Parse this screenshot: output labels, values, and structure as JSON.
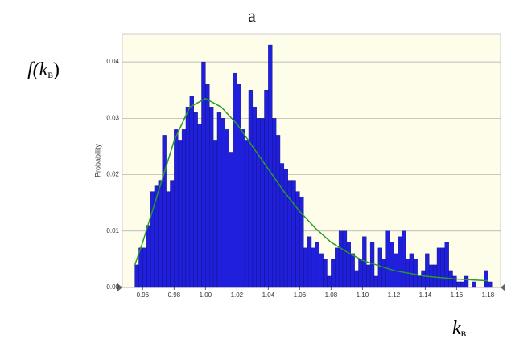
{
  "chart_data": {
    "type": "histogram",
    "title": "a",
    "ylabel_parts": [
      "f(k",
      "в",
      ")"
    ],
    "xlabel_parts": [
      "k",
      "в"
    ],
    "axis_label": "Probability",
    "color": "#1f1fdc",
    "bins": [
      0.955,
      0.9575,
      0.96,
      0.9625,
      0.965,
      0.9675,
      0.97,
      0.9725,
      0.975,
      0.9775,
      0.98,
      0.9825,
      0.985,
      0.9875,
      0.99,
      0.9925,
      0.995,
      0.9975,
      1.0,
      1.0025,
      1.005,
      1.0075,
      1.01,
      1.0125,
      1.015,
      1.0175,
      1.02,
      1.0225,
      1.025,
      1.0275,
      1.03,
      1.0325,
      1.035,
      1.0375,
      1.04,
      1.0425,
      1.045,
      1.0475,
      1.05,
      1.0525,
      1.055,
      1.0575,
      1.06,
      1.0625,
      1.065,
      1.0675,
      1.07,
      1.0725,
      1.075,
      1.0775,
      1.08,
      1.0825,
      1.085,
      1.0875,
      1.09,
      1.0925,
      1.095,
      1.0975,
      1.1,
      1.1025,
      1.105,
      1.1075,
      1.11,
      1.1125,
      1.115,
      1.1175,
      1.12,
      1.1225,
      1.125,
      1.1275,
      1.13,
      1.1325,
      1.135,
      1.1375,
      1.14,
      1.1425,
      1.145,
      1.1475,
      1.15,
      1.1525,
      1.155,
      1.1575,
      1.16,
      1.1625,
      1.165,
      1.1675,
      1.17,
      1.1725,
      1.175,
      1.1775,
      1.18,
      1.1825
    ],
    "counts": [
      0.004,
      0.007,
      0.007,
      0.011,
      0.017,
      0.018,
      0.019,
      0.027,
      0.017,
      0.019,
      0.028,
      0.026,
      0.028,
      0.032,
      0.034,
      0.031,
      0.029,
      0.04,
      0.036,
      0.032,
      0.026,
      0.031,
      0.03,
      0.028,
      0.024,
      0.038,
      0.036,
      0.028,
      0.026,
      0.035,
      0.032,
      0.03,
      0.03,
      0.035,
      0.043,
      0.03,
      0.027,
      0.022,
      0.021,
      0.019,
      0.019,
      0.017,
      0.016,
      0.007,
      0.009,
      0.007,
      0.008,
      0.006,
      0.005,
      0.002,
      0.005,
      0.007,
      0.01,
      0.01,
      0.008,
      0.006,
      0.003,
      0.005,
      0.009,
      0.004,
      0.008,
      0.002,
      0.007,
      0.005,
      0.01,
      0.008,
      0.006,
      0.009,
      0.01,
      0.005,
      0.006,
      0.005,
      0.002,
      0.003,
      0.006,
      0.004,
      0.004,
      0.007,
      0.007,
      0.008,
      0.003,
      0.002,
      0.001,
      0.001,
      0.002,
      0,
      0.001,
      0,
      0,
      0.003,
      0.001
    ],
    "curve": {
      "color": "#2a9a2a",
      "x": [
        0.955,
        0.96,
        0.97,
        0.98,
        0.99,
        1.0,
        1.01,
        1.02,
        1.03,
        1.04,
        1.05,
        1.06,
        1.07,
        1.08,
        1.09,
        1.1,
        1.12,
        1.14,
        1.16,
        1.18
      ],
      "y": [
        0.004,
        0.008,
        0.017,
        0.026,
        0.032,
        0.0335,
        0.032,
        0.029,
        0.025,
        0.021,
        0.017,
        0.0135,
        0.0105,
        0.008,
        0.0063,
        0.0048,
        0.003,
        0.002,
        0.0015,
        0.0012
      ]
    },
    "xlim": [
      0.947,
      1.188
    ],
    "ylim": [
      0,
      0.045
    ],
    "xticks": [
      0.96,
      0.98,
      {
        "value": 1,
        "label": "1.00"
      },
      1.02,
      1.04,
      1.06,
      1.08,
      {
        "value": 1.1,
        "label": "1.10"
      },
      1.12,
      1.14,
      1.16,
      1.18
    ],
    "yticks": [
      {
        "value": 0,
        "label": "0.00"
      },
      0.01,
      0.02,
      0.03,
      0.04
    ],
    "grid": true
  }
}
